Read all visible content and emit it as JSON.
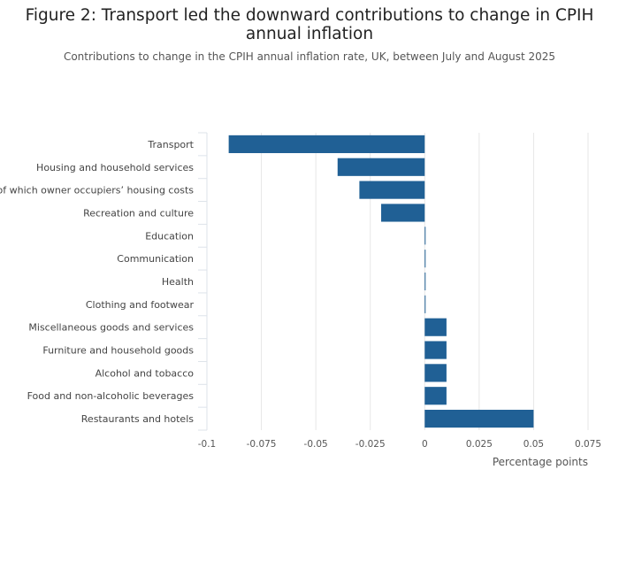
{
  "chart_data": {
    "type": "bar",
    "orientation": "horizontal",
    "title": "Figure 2: Transport led the downward contributions to change in CPIH annual inflation",
    "subtitle": "Contributions to change in the CPIH annual inflation rate, UK, between July and August 2025",
    "xlabel": "Percentage points",
    "ylabel": "",
    "xlim": [
      -0.1,
      0.075
    ],
    "xticks": [
      -0.1,
      -0.075,
      -0.05,
      -0.025,
      0,
      0.025,
      0.05,
      0.075
    ],
    "xtick_labels": [
      "-0.1",
      "-0.075",
      "-0.05",
      "-0.025",
      "0",
      "0.025",
      "0.05",
      "0.075"
    ],
    "grid": true,
    "bar_color": "#206095",
    "categories": [
      "Transport",
      "Housing and household services",
      "of which owner occupiers’ housing costs",
      "Recreation and culture",
      "Education",
      "Communication",
      "Health",
      "Clothing and footwear",
      "Miscellaneous goods and services",
      "Furniture and household goods",
      "Alcohol and tobacco",
      "Food and non-alcoholic beverages",
      "Restaurants and hotels"
    ],
    "values": [
      -0.09,
      -0.04,
      -0.03,
      -0.02,
      0,
      0,
      0,
      0,
      0.01,
      0.01,
      0.01,
      0.01,
      0.05
    ]
  }
}
